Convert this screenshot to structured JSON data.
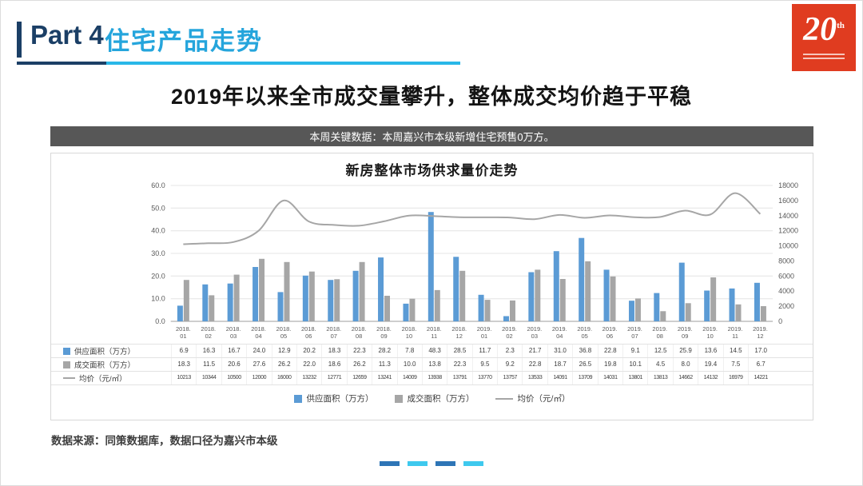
{
  "header": {
    "part_label": "Part 4",
    "section_title": "住宅产品走势",
    "logo": {
      "number": "20",
      "suffix": "th"
    }
  },
  "main_title": "2019年以来全市成交量攀升，整体成交均价趋于平稳",
  "banner_text": "本周关键数据：本周嘉兴市本级新增住宅预售0万方。",
  "chart_data": {
    "type": "combo",
    "title": "新房整体市场供求量价走势",
    "categories": [
      "2018.01",
      "2018.02",
      "2018.03",
      "2018.04",
      "2018.05",
      "2018.06",
      "2018.07",
      "2018.08",
      "2018.09",
      "2018.10",
      "2018.11",
      "2018.12",
      "2019.01",
      "2019.02",
      "2019.03",
      "2019.04",
      "2019.05",
      "2019.06",
      "2019.07",
      "2019.08",
      "2019.09",
      "2019.10",
      "2019.11",
      "2019.12"
    ],
    "series": [
      {
        "name": "供应面积（万方）",
        "type": "bar",
        "color": "#5b9bd5",
        "values": [
          6.9,
          16.3,
          16.7,
          24.0,
          12.9,
          20.2,
          18.3,
          22.3,
          28.2,
          7.8,
          48.3,
          28.5,
          11.7,
          2.3,
          21.7,
          31.0,
          36.8,
          22.8,
          9.1,
          12.5,
          25.9,
          13.6,
          14.5,
          17.0
        ]
      },
      {
        "name": "成交面积（万方）",
        "type": "bar",
        "color": "#a6a6a6",
        "values": [
          18.3,
          11.5,
          20.6,
          27.6,
          26.2,
          22.0,
          18.6,
          26.2,
          11.3,
          10.0,
          13.8,
          22.3,
          9.5,
          9.2,
          22.8,
          18.7,
          26.5,
          19.8,
          10.1,
          4.5,
          8.0,
          19.4,
          7.5,
          6.7
        ]
      },
      {
        "name": "均价（元/㎡）",
        "type": "line",
        "color": "#a6a6a6",
        "values": [
          10213,
          10344,
          10500,
          12000,
          16000,
          13232,
          12771,
          12659,
          13241,
          14009,
          13938,
          13791,
          13770,
          13757,
          13533,
          14091,
          13709,
          14031,
          13801,
          13813,
          14662,
          14132,
          16979,
          14221
        ]
      }
    ],
    "left_axis": {
      "min": 0,
      "max": 60,
      "step": 10
    },
    "right_axis": {
      "min": 0,
      "max": 18000,
      "step": 2000
    },
    "grid": true,
    "legend_position": "bottom"
  },
  "source_note": "数据来源：同策数据库，数据口径为嘉兴市本级",
  "footer_dots": [
    "#2e75b6",
    "#3ec9ee",
    "#2e75b6",
    "#3ec9ee"
  ]
}
